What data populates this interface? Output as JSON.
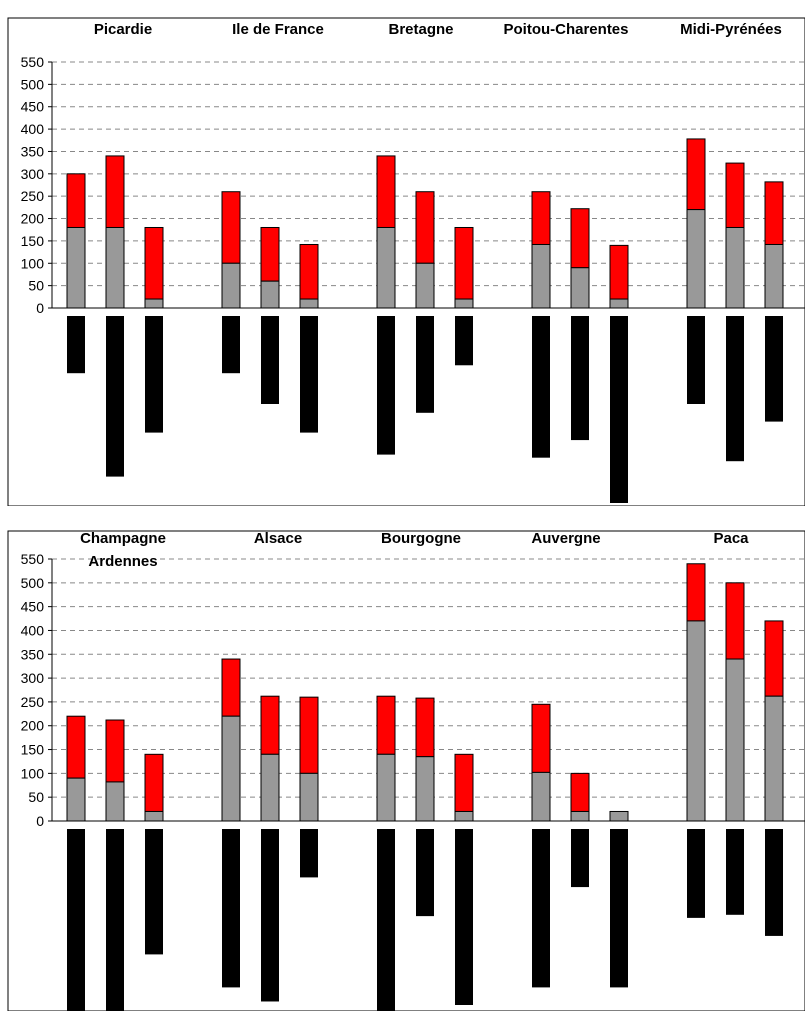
{
  "chart_data": [
    {
      "type": "bar",
      "stacked": true,
      "title": "",
      "xlabel": "",
      "ylabel": "",
      "ylim": [
        0,
        550
      ],
      "yticks": [
        0,
        50,
        100,
        150,
        200,
        250,
        300,
        350,
        400,
        450,
        500,
        550
      ],
      "grid": true,
      "legend": "none",
      "regions": [
        {
          "name": "Picardie",
          "bars": [
            {
              "gray": 180,
              "total": 300,
              "negative": 130
            },
            {
              "gray": 180,
              "total": 340,
              "negative": 365
            },
            {
              "gray": 20,
              "total": 180,
              "negative": 265
            }
          ]
        },
        {
          "name": "Ile de France",
          "bars": [
            {
              "gray": 100,
              "total": 260,
              "negative": 130
            },
            {
              "gray": 60,
              "total": 180,
              "negative": 200
            },
            {
              "gray": 20,
              "total": 142,
              "negative": 265
            }
          ]
        },
        {
          "name": "Bretagne",
          "bars": [
            {
              "gray": 180,
              "total": 340,
              "negative": 315
            },
            {
              "gray": 100,
              "total": 260,
              "negative": 220
            },
            {
              "gray": 20,
              "total": 180,
              "negative": 112
            }
          ]
        },
        {
          "name": "Poitou-Charentes",
          "bars": [
            {
              "gray": 142,
              "total": 260,
              "negative": 322
            },
            {
              "gray": 90,
              "total": 222,
              "negative": 282
            },
            {
              "gray": 20,
              "total": 140,
              "negative": 425
            }
          ]
        },
        {
          "name": "Midi-Pyrénées",
          "bars": [
            {
              "gray": 220,
              "total": 378,
              "negative": 200
            },
            {
              "gray": 180,
              "total": 324,
              "negative": 330
            },
            {
              "gray": 142,
              "total": 282,
              "negative": 240
            }
          ]
        }
      ]
    },
    {
      "type": "bar",
      "stacked": true,
      "title": "",
      "xlabel": "",
      "ylabel": "",
      "ylim": [
        0,
        550
      ],
      "yticks": [
        0,
        50,
        100,
        150,
        200,
        250,
        300,
        350,
        400,
        450,
        500,
        550
      ],
      "grid": true,
      "legend": "none",
      "regions": [
        {
          "name": "Champagne Ardennes",
          "lines": [
            "Champagne",
            "Ardennes"
          ],
          "bars": [
            {
              "gray": 90,
              "total": 220,
              "negative": 420
            },
            {
              "gray": 82,
              "total": 212,
              "negative": 430
            },
            {
              "gray": 20,
              "total": 140,
              "negative": 285
            }
          ]
        },
        {
          "name": "Alsace",
          "bars": [
            {
              "gray": 220,
              "total": 340,
              "negative": 360
            },
            {
              "gray": 140,
              "total": 262,
              "negative": 392
            },
            {
              "gray": 100,
              "total": 260,
              "negative": 110
            }
          ]
        },
        {
          "name": "Bourgogne",
          "bars": [
            {
              "gray": 140,
              "total": 262,
              "negative": 418
            },
            {
              "gray": 135,
              "total": 258,
              "negative": 198
            },
            {
              "gray": 20,
              "total": 140,
              "negative": 400
            }
          ]
        },
        {
          "name": "Auvergne",
          "bars": [
            {
              "gray": 102,
              "total": 245,
              "negative": 360
            },
            {
              "gray": 20,
              "total": 100,
              "negative": 132
            },
            {
              "gray": 20,
              "total": 20,
              "negative": 360
            }
          ]
        },
        {
          "name": "Paca",
          "bars": [
            {
              "gray": 420,
              "total": 540,
              "negative": 202
            },
            {
              "gray": 340,
              "total": 500,
              "negative": 195
            },
            {
              "gray": 262,
              "total": 420,
              "negative": 243
            }
          ]
        }
      ]
    }
  ],
  "colors": {
    "lower_segment": "#999999",
    "upper_segment": "#ff0000",
    "negative_bar": "#000000",
    "gridline": "#888888",
    "frame": "#000000"
  }
}
